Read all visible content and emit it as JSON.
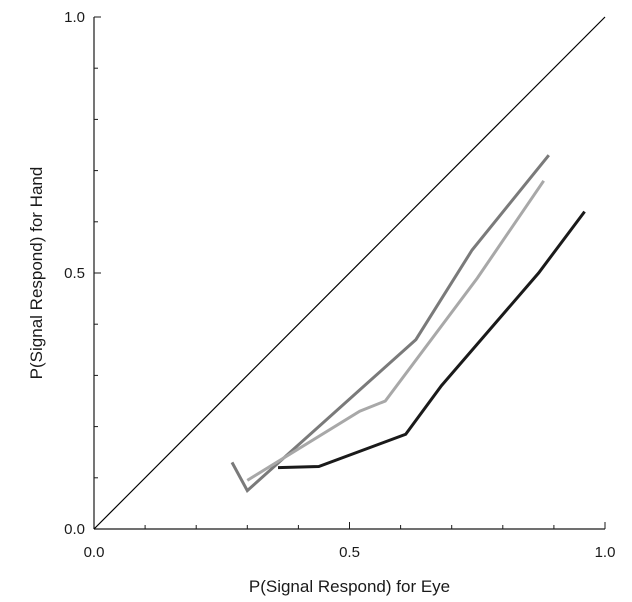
{
  "chart_data": {
    "type": "line",
    "xlabel": "P(Signal Respond) for Eye",
    "ylabel": "P(Signal Respond) for Hand",
    "xlim": [
      0,
      1
    ],
    "ylim": [
      0,
      1
    ],
    "x_ticks": [
      0.0,
      0.1,
      0.2,
      0.3,
      0.4,
      0.5,
      0.6,
      0.7,
      0.8,
      0.9,
      1.0
    ],
    "y_ticks": [
      0.0,
      0.1,
      0.2,
      0.3,
      0.4,
      0.5,
      0.6,
      0.7,
      0.8,
      0.9,
      1.0
    ],
    "x_tick_labels": [
      {
        "value": 0.0,
        "label": "0.0"
      },
      {
        "value": 0.5,
        "label": "0.5"
      },
      {
        "value": 1.0,
        "label": "1.0"
      }
    ],
    "y_tick_labels": [
      {
        "value": 0.0,
        "label": "0.0"
      },
      {
        "value": 0.5,
        "label": "0.5"
      },
      {
        "value": 1.0,
        "label": "1.0"
      }
    ],
    "grid": false,
    "reference_line": {
      "x": [
        0,
        1
      ],
      "y": [
        0,
        1
      ],
      "color": "#000000"
    },
    "series": [
      {
        "color": "#7a7a7a",
        "x": [
          0.27,
          0.3,
          0.63,
          0.74,
          0.89
        ],
        "y": [
          0.13,
          0.075,
          0.37,
          0.545,
          0.73
        ]
      },
      {
        "color": "#a8a8a8",
        "x": [
          0.3,
          0.52,
          0.57,
          0.75,
          0.88
        ],
        "y": [
          0.095,
          0.23,
          0.25,
          0.49,
          0.68
        ]
      },
      {
        "color": "#1a1a1a",
        "x": [
          0.36,
          0.44,
          0.61,
          0.68,
          0.87,
          0.96
        ],
        "y": [
          0.12,
          0.122,
          0.185,
          0.28,
          0.5,
          0.62
        ]
      }
    ]
  }
}
